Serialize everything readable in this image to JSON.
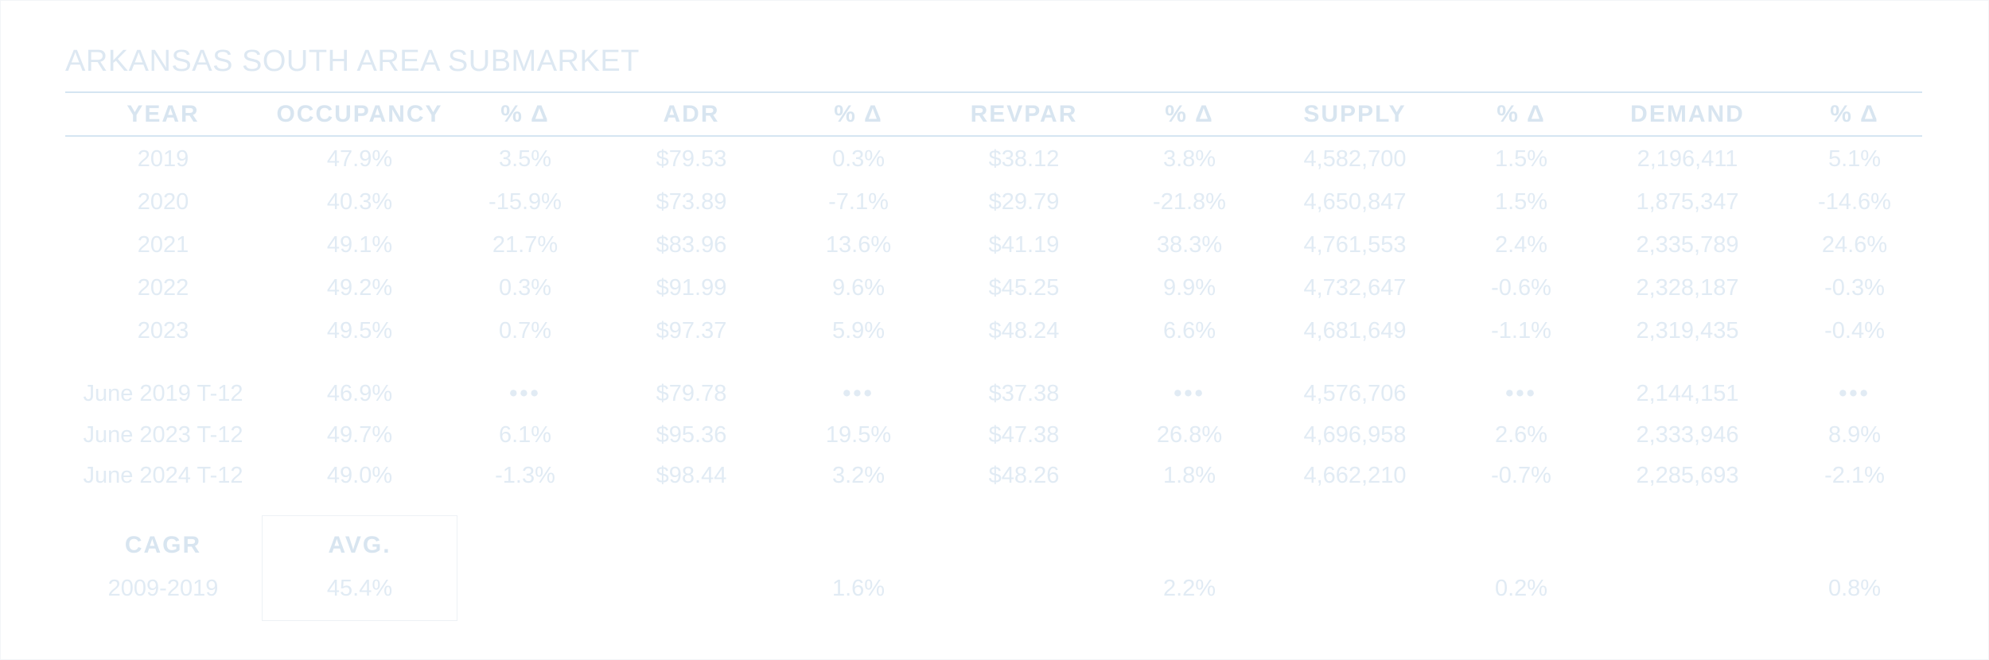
{
  "title": "ARKANSAS SOUTH AREA SUBMARKET",
  "headers": [
    "YEAR",
    "OCCUPANCY",
    "% Δ",
    "ADR",
    "% Δ",
    "REVPAR",
    "% Δ",
    "SUPPLY",
    "% Δ",
    "DEMAND",
    "% Δ"
  ],
  "annual_rows": [
    [
      "2019",
      "47.9%",
      "3.5%",
      "$79.53",
      "0.3%",
      "$38.12",
      "3.8%",
      "4,582,700",
      "1.5%",
      "2,196,411",
      "5.1%"
    ],
    [
      "2020",
      "40.3%",
      "-15.9%",
      "$73.89",
      "-7.1%",
      "$29.79",
      "-21.8%",
      "4,650,847",
      "1.5%",
      "1,875,347",
      "-14.6%"
    ],
    [
      "2021",
      "49.1%",
      "21.7%",
      "$83.96",
      "13.6%",
      "$41.19",
      "38.3%",
      "4,761,553",
      "2.4%",
      "2,335,789",
      "24.6%"
    ],
    [
      "2022",
      "49.2%",
      "0.3%",
      "$91.99",
      "9.6%",
      "$45.25",
      "9.9%",
      "4,732,647",
      "-0.6%",
      "2,328,187",
      "-0.3%"
    ],
    [
      "2023",
      "49.5%",
      "0.7%",
      "$97.37",
      "5.9%",
      "$48.24",
      "6.6%",
      "4,681,649",
      "-1.1%",
      "2,319,435",
      "-0.4%"
    ]
  ],
  "t12_rows": [
    [
      "June 2019 T-12",
      "46.9%",
      "•••",
      "$79.78",
      "•••",
      "$37.38",
      "•••",
      "4,576,706",
      "•••",
      "2,144,151",
      "•••"
    ],
    [
      "June 2023 T-12",
      "49.7%",
      "6.1%",
      "$95.36",
      "19.5%",
      "$47.38",
      "26.8%",
      "4,696,958",
      "2.6%",
      "2,333,946",
      "8.9%"
    ],
    [
      "June 2024 T-12",
      "49.0%",
      "-1.3%",
      "$98.44",
      "3.2%",
      "$48.26",
      "1.8%",
      "4,662,210",
      "-0.7%",
      "2,285,693",
      "-2.1%"
    ]
  ],
  "cagr": {
    "header_left": "CAGR",
    "header_avg": "AVG.",
    "row": [
      "2009-2019",
      "45.4%",
      "",
      "",
      "1.6%",
      "",
      "2.2%",
      "",
      "0.2%",
      "",
      "0.8%"
    ]
  }
}
